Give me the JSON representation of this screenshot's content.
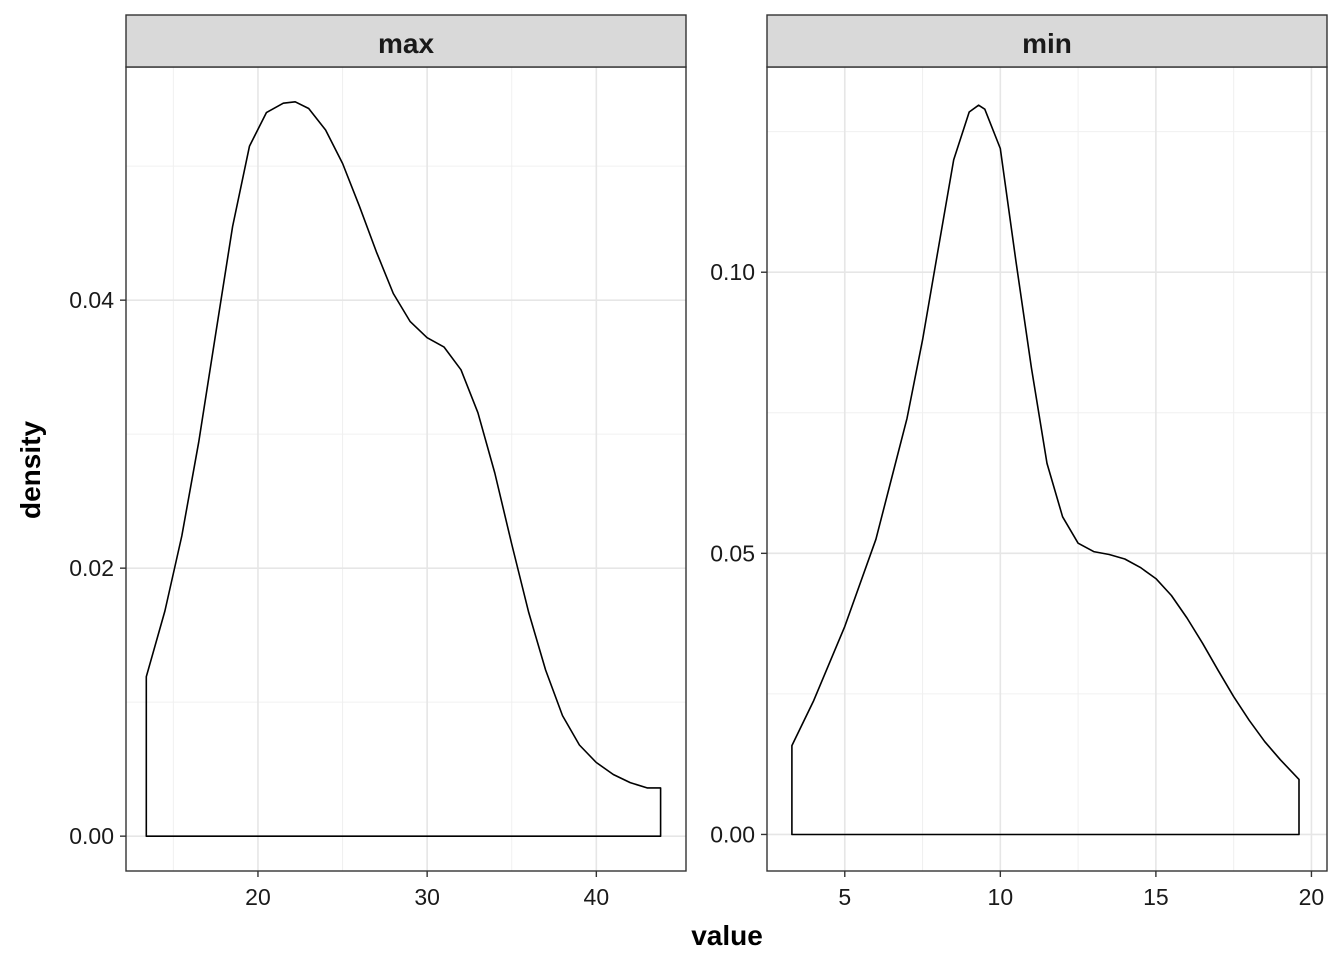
{
  "chart_data": {
    "type": "area",
    "xlabel": "value",
    "ylabel": "density",
    "grid": true,
    "panels": [
      {
        "name": "max",
        "xlim": [
          12.2,
          45.3
        ],
        "ylim": [
          -0.0026,
          0.0574
        ],
        "x_ticks": [
          20,
          30,
          40
        ],
        "x_minor": [
          15,
          25,
          35
        ],
        "y_ticks": [
          0.0,
          0.02,
          0.04
        ],
        "y_tick_labels": [
          "0.00",
          "0.02",
          "0.04"
        ],
        "y_minor": [
          0.01,
          0.03,
          0.05
        ],
        "series": [
          {
            "x": [
              13.4,
              14.5,
              15.5,
              16.5,
              17.5,
              18.5,
              19.5,
              20.5,
              21.5,
              22.2,
              23.0,
              24.0,
              25.0,
              26.0,
              27.0,
              28.0,
              29.0,
              30.0,
              31.0,
              32.0,
              33.0,
              34.0,
              35.0,
              36.0,
              37.0,
              38.0,
              39.0,
              40.0,
              41.0,
              42.0,
              43.0,
              43.8
            ],
            "y": [
              0.0119,
              0.0168,
              0.0224,
              0.0294,
              0.0375,
              0.0455,
              0.0515,
              0.054,
              0.0547,
              0.0548,
              0.0543,
              0.0527,
              0.0502,
              0.047,
              0.0436,
              0.0405,
              0.0384,
              0.0372,
              0.0365,
              0.0348,
              0.0316,
              0.0271,
              0.0218,
              0.0167,
              0.0124,
              0.009,
              0.0068,
              0.0055,
              0.0046,
              0.004,
              0.0036,
              0.0036
            ]
          }
        ]
      },
      {
        "name": "min",
        "xlim": [
          2.5,
          20.5
        ],
        "ylim": [
          -0.0065,
          0.1365
        ],
        "x_ticks": [
          5,
          10,
          15,
          20
        ],
        "x_minor": [
          7.5,
          12.5,
          17.5
        ],
        "y_ticks": [
          0.0,
          0.05,
          0.1
        ],
        "y_tick_labels": [
          "0.00",
          "0.05",
          "0.10"
        ],
        "y_minor": [
          0.025,
          0.075,
          0.125
        ],
        "series": [
          {
            "x": [
              3.3,
              4.0,
              5.0,
              6.0,
              7.0,
              7.5,
              8.0,
              8.5,
              9.0,
              9.3,
              9.5,
              10.0,
              10.5,
              11.0,
              11.5,
              12.0,
              12.5,
              13.0,
              13.5,
              14.0,
              14.5,
              15.0,
              15.5,
              16.0,
              16.5,
              17.0,
              17.5,
              18.0,
              18.5,
              19.0,
              19.6
            ],
            "y": [
              0.0158,
              0.0238,
              0.037,
              0.0525,
              0.074,
              0.088,
              0.104,
              0.12,
              0.1285,
              0.1297,
              0.129,
              0.122,
              0.102,
              0.083,
              0.066,
              0.0565,
              0.0518,
              0.0503,
              0.0498,
              0.049,
              0.0475,
              0.0455,
              0.0425,
              0.0385,
              0.034,
              0.0292,
              0.0245,
              0.0203,
              0.0165,
              0.0133,
              0.0098
            ]
          }
        ]
      }
    ]
  }
}
